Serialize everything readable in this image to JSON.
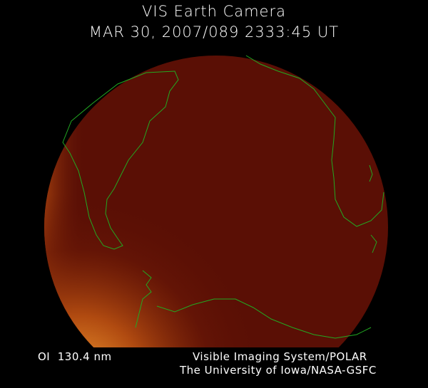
{
  "header": {
    "title": "VIS Earth Camera",
    "timestamp": "MAR 30, 2007/089 2333:45 UT"
  },
  "footer": {
    "wavelength": "OI  130.4 nm",
    "credit_line1": "Visible Imaging System/POLAR",
    "credit_line2": "The University of Iowa/NASA-GSFC"
  },
  "colors": {
    "disk": "#5a0f05",
    "aurora_glow": "#e07a20",
    "coastline": "#22aa22"
  }
}
